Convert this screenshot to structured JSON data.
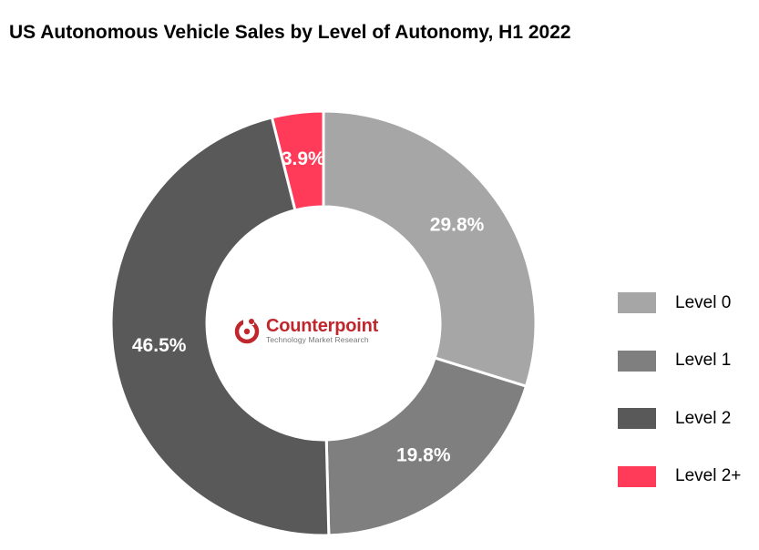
{
  "colors": {
    "level0": "#a6a6a6",
    "level1": "#7f7f7f",
    "level2": "#595959",
    "level2plus": "#ff3b59",
    "brand": "#c0272d"
  },
  "logo": {
    "name": "Counterpoint",
    "tagline": "Technology Market Research",
    "icon": "counterpoint-logo-icon"
  },
  "chart_data": {
    "type": "pie",
    "variant": "donut",
    "title": "US Autonomous Vehicle Sales by Level of Autonomy, H1 2022",
    "legend_position": "right",
    "slices": [
      {
        "name": "Level 0",
        "value": 29.8,
        "label": "29.8%",
        "color": "#a6a6a6"
      },
      {
        "name": "Level 1",
        "value": 19.8,
        "label": "19.8%",
        "color": "#7f7f7f"
      },
      {
        "name": "Level 2",
        "value": 46.5,
        "label": "46.5%",
        "color": "#595959"
      },
      {
        "name": "Level 2+",
        "value": 3.9,
        "label": "3.9%",
        "color": "#ff3b59"
      }
    ]
  }
}
